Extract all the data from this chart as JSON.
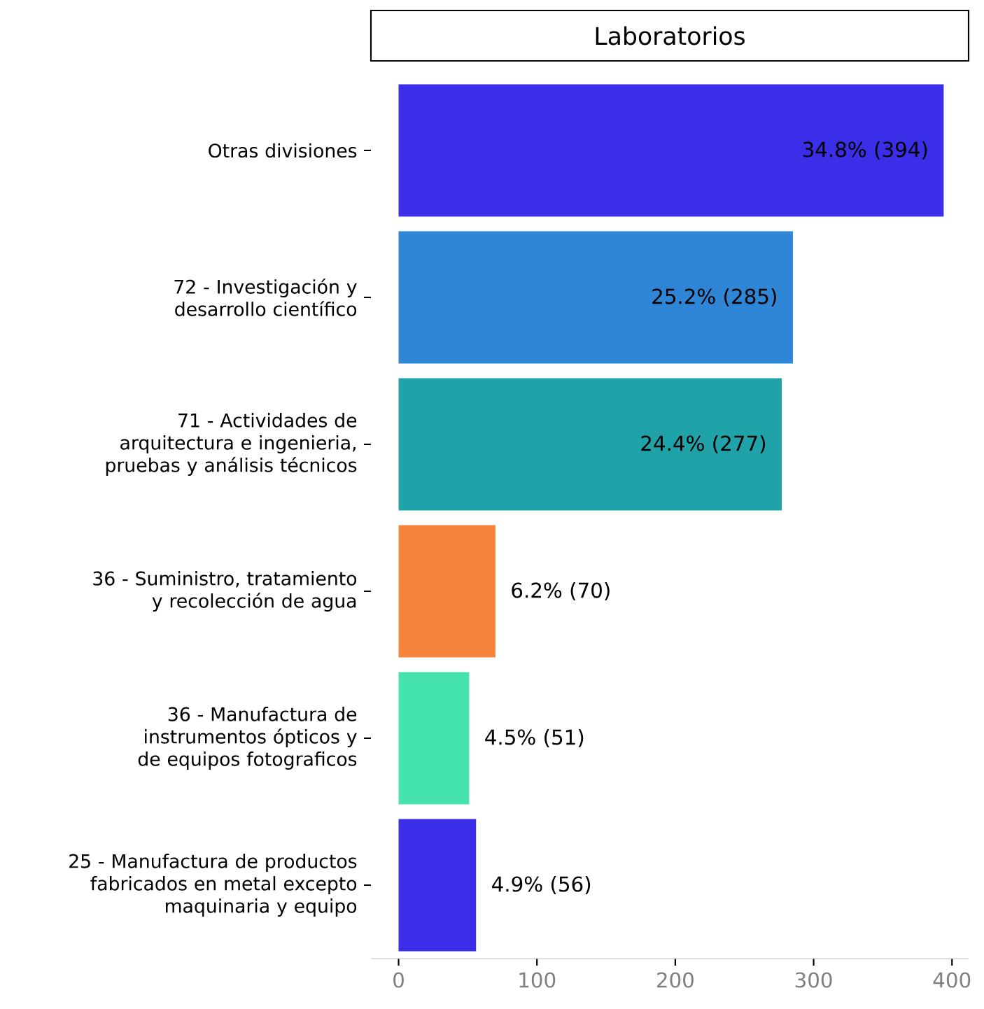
{
  "chart_data": {
    "type": "bar",
    "orientation": "horizontal",
    "title": "Laboratorios",
    "categories": [
      "Otras divisiones",
      "72 - Investigación y desarrollo científico",
      "71 - Actividades de arquitectura e ingenieria, pruebas y análisis técnicos",
      "36 - Suministro, tratamiento y recolección de agua",
      "36 - Manufactura de instrumentos ópticos y de equipos fotograficos",
      "25 - Manufactura de productos fabricados en metal excepto maquinaria y equipo"
    ],
    "values": [
      394,
      285,
      277,
      70,
      51,
      56
    ],
    "colors": [
      "#3a2ee8",
      "#2f86d6",
      "#20a3a8",
      "#f5843a",
      "#45e3b0",
      "#3a2ee8"
    ],
    "value_labels": [
      "34.8% (394)",
      "25.2% (285)",
      "24.4% (277)",
      "6.2% (70)",
      "4.5% (51)",
      "4.9% (56)"
    ],
    "xlim": [
      -20,
      412
    ],
    "xticks": [
      0,
      100,
      200,
      300,
      400
    ]
  }
}
